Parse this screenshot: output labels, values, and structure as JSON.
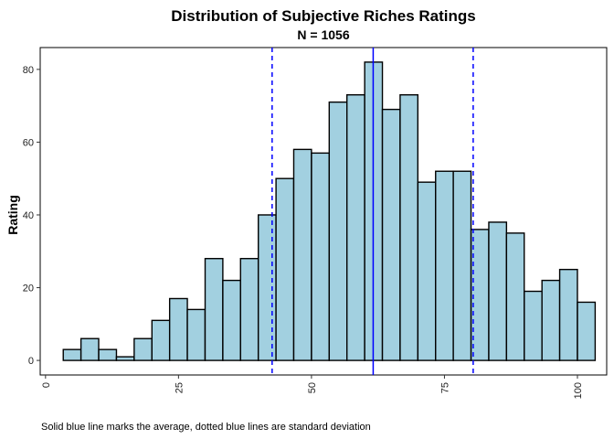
{
  "chart_data": {
    "type": "bar",
    "title": "Distribution of Subjective Riches Ratings",
    "subtitle": "N = 1056",
    "ylabel": "Rating",
    "xlabel": "",
    "caption": "Solid blue line marks the average, dotted blue lines are standard deviation",
    "bin_width": 3.33,
    "x": [
      5,
      8.33,
      11.67,
      15,
      18.33,
      21.67,
      25,
      28.33,
      31.67,
      35,
      38.33,
      41.67,
      45,
      48.33,
      51.67,
      55,
      58.33,
      61.67,
      65,
      68.33,
      71.67,
      75,
      78.33,
      81.67,
      85,
      88.33,
      91.67,
      95,
      98.33,
      101.67
    ],
    "values": [
      3,
      6,
      3,
      1,
      6,
      11,
      17,
      14,
      28,
      22,
      28,
      40,
      50,
      58,
      57,
      71,
      73,
      82,
      69,
      73,
      49,
      52,
      52,
      36,
      38,
      35,
      19,
      22,
      25,
      16
    ],
    "mean": 61.6,
    "sd_lines": [
      42.6,
      80.4
    ],
    "xlim": [
      -1,
      105.5
    ],
    "ylim": [
      -4,
      86
    ],
    "xticks": [
      0,
      25,
      50,
      75,
      100
    ],
    "yticks": [
      0,
      20,
      40,
      60,
      80
    ],
    "bar_color": "#a2d0e0",
    "bar_border": "#000000",
    "line_color": "#0000ff",
    "grid": false
  }
}
